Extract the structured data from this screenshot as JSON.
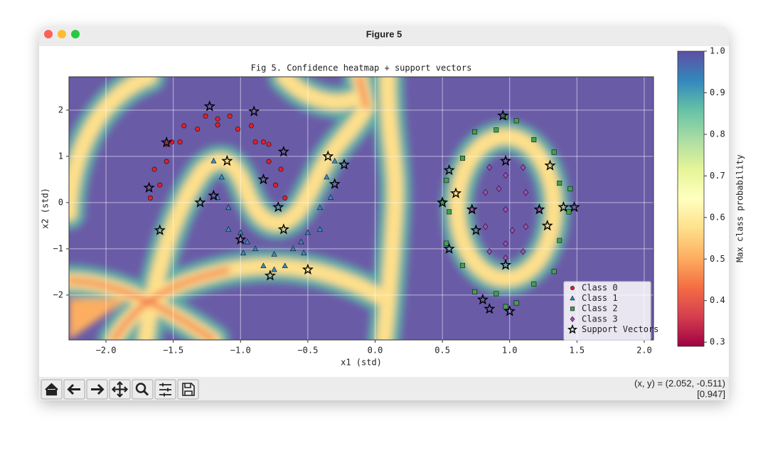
{
  "window": {
    "title": "Figure 5"
  },
  "chart_data": {
    "type": "scatter",
    "title": "Fig 5. Confidence heatmap + support vectors",
    "xlabel": "x1 (std)",
    "ylabel": "x2 (std)",
    "xlim": [
      -2.275,
      2.069
    ],
    "ylim": [
      -2.97,
      2.72
    ],
    "xticks": [
      {
        "value": -2,
        "label": "−2.0"
      },
      {
        "value": -1.5,
        "label": "−1.5"
      },
      {
        "value": -1,
        "label": "−1.0"
      },
      {
        "value": -0.5,
        "label": "−0.5"
      },
      {
        "value": 0,
        "label": "0.0"
      },
      0.5,
      {
        "value": 1,
        "label": "1.0"
      },
      1.5,
      {
        "value": 2,
        "label": "2.0"
      }
    ],
    "yticks": [
      {
        "value": -2,
        "label": "−2"
      },
      {
        "value": -1,
        "label": "−1"
      },
      0,
      1,
      2
    ],
    "grid": true,
    "legend": "lower right",
    "series": [
      {
        "name": "Class 0",
        "color": "#e0202c",
        "marker": "o",
        "x": [
          -0.67,
          -0.74,
          -0.7,
          -0.79,
          -0.79,
          -0.89,
          -0.92,
          -1.02,
          -1.08,
          -1.17,
          -1.26,
          -1.32,
          -1.42,
          -1.45,
          -1.55,
          -1.55,
          -1.64,
          -1.6,
          -1.67,
          -0.83,
          -1.51,
          -1.17
        ],
        "y": [
          0.1,
          0.38,
          0.72,
          0.89,
          1.26,
          1.31,
          1.66,
          1.59,
          1.87,
          1.68,
          1.87,
          1.59,
          1.66,
          1.31,
          1.26,
          0.89,
          0.72,
          0.38,
          0.1,
          1.31,
          1.31,
          1.81
        ]
      },
      {
        "name": "Class 1",
        "color": "#3b8bc2",
        "marker": "^",
        "x": [
          -0.3,
          -0.36,
          -0.33,
          -0.41,
          -0.41,
          -0.5,
          -0.53,
          -0.61,
          -0.67,
          -0.75,
          -0.83,
          -0.89,
          -0.98,
          -1.0,
          -1.09,
          -1.09,
          -1.17,
          -1.14,
          -1.2,
          -0.75,
          -0.55,
          -0.95
        ],
        "y": [
          0.9,
          0.55,
          0.11,
          -0.11,
          -0.58,
          -0.65,
          -1.09,
          -1.0,
          -1.37,
          -1.12,
          -1.37,
          -1.0,
          -1.09,
          -0.65,
          -0.58,
          -0.11,
          0.11,
          0.55,
          0.9,
          -1.45,
          -0.85,
          -0.85
        ]
      },
      {
        "name": "Class 2",
        "color": "#3fa34d",
        "marker": "s",
        "x": [
          1.44,
          1.37,
          1.33,
          1.18,
          1.05,
          0.9,
          0.74,
          0.65,
          0.53,
          0.55,
          0.53,
          0.65,
          0.74,
          0.9,
          1.05,
          1.18,
          1.33,
          1.37,
          0.97,
          0.97,
          1.45,
          0.5
        ],
        "y": [
          -0.2,
          0.42,
          1.09,
          1.36,
          1.77,
          1.57,
          1.53,
          0.96,
          0.48,
          -0.2,
          -0.88,
          -1.36,
          -1.93,
          -1.97,
          -2.17,
          -1.76,
          -1.49,
          -0.82,
          -2.25,
          1.85,
          0.3,
          0.0
        ]
      },
      {
        "name": "Class 3",
        "color": "#a14fb5",
        "marker": "D",
        "x": [
          1.22,
          1.12,
          1.1,
          0.97,
          0.85,
          0.82,
          0.72,
          0.82,
          0.85,
          0.97,
          1.1,
          1.12,
          0.97,
          0.92,
          1.02,
          0.97
        ],
        "y": [
          -0.15,
          0.22,
          0.76,
          0.59,
          0.76,
          0.22,
          -0.15,
          -0.52,
          -1.06,
          -0.89,
          -1.06,
          -0.52,
          -0.15,
          0.3,
          -0.6,
          -1.2
        ]
      },
      {
        "name": "Support Vectors",
        "color": "#000000",
        "marker": "*",
        "x": [
          -1.23,
          -0.9,
          -1.55,
          -0.68,
          -1.68,
          -1.6,
          -0.35,
          -0.23,
          -1.1,
          -0.83,
          -0.72,
          -1.2,
          -0.68,
          -1.0,
          -0.78,
          -0.5,
          -0.3,
          -1.3,
          0.95,
          0.55,
          0.5,
          0.55,
          1.4,
          1.48,
          0.85,
          1.0,
          0.6,
          1.3,
          1.22,
          0.72,
          0.97,
          0.97,
          0.75,
          1.28,
          0.8
        ],
        "y": [
          2.08,
          1.97,
          1.3,
          1.1,
          0.32,
          -0.6,
          1.0,
          0.82,
          0.9,
          0.5,
          -0.1,
          0.15,
          -0.58,
          -0.8,
          -1.58,
          -1.45,
          0.4,
          0.0,
          1.88,
          0.7,
          0.0,
          -1.0,
          -0.1,
          -0.1,
          -2.3,
          -2.35,
          0.2,
          0.8,
          -0.15,
          -0.15,
          -1.35,
          0.9,
          -0.6,
          -0.5,
          -2.1
        ]
      }
    ],
    "colorbar": {
      "label": "Max class probability",
      "lim": [
        0.29,
        1.0
      ],
      "ticks": [
        0.3,
        0.4,
        0.5,
        0.6,
        0.7,
        0.8,
        0.9,
        {
          "value": 1,
          "label": "1.0"
        }
      ]
    }
  },
  "status": {
    "coords": "(x, y) = (2.052, -0.511)",
    "value": "[0.947]"
  }
}
